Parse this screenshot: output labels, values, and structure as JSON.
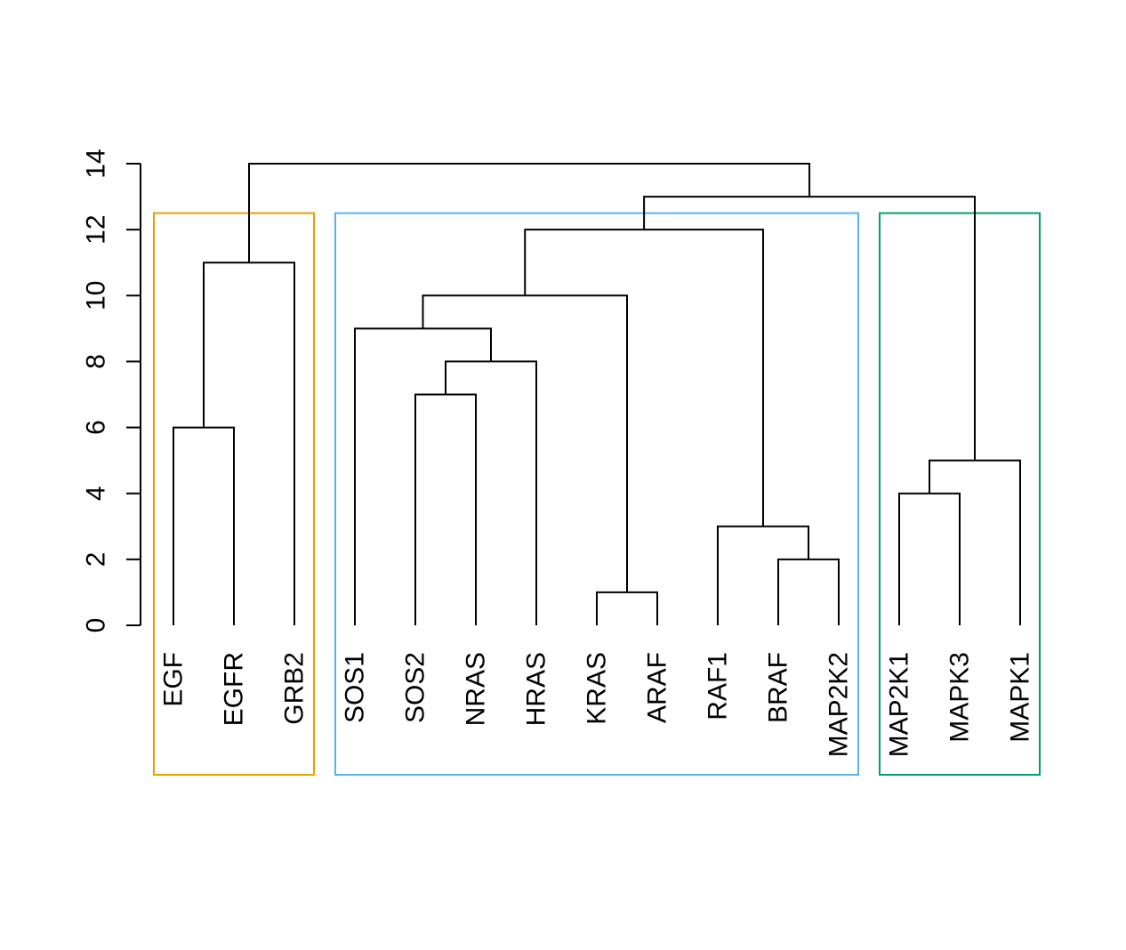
{
  "chart_data": {
    "type": "dendrogram",
    "title": "",
    "xlabel": "",
    "ylabel": "",
    "ylim": [
      0,
      14
    ],
    "yticks": [
      0,
      2,
      4,
      6,
      8,
      10,
      12,
      14
    ],
    "leaves": [
      "EGF",
      "EGFR",
      "GRB2",
      "SOS1",
      "SOS2",
      "NRAS",
      "HRAS",
      "KRAS",
      "ARAF",
      "RAF1",
      "BRAF",
      "MAP2K2",
      "MAP2K1",
      "MAPK3",
      "MAPK1"
    ],
    "merges": [
      {
        "children": [
          "EGF",
          "EGFR"
        ],
        "height": 6
      },
      {
        "children": [
          "EGF|EGFR",
          "GRB2"
        ],
        "height": 11
      },
      {
        "children": [
          "SOS2",
          "NRAS"
        ],
        "height": 7
      },
      {
        "children": [
          "SOS2|NRAS",
          "HRAS"
        ],
        "height": 8
      },
      {
        "children": [
          "SOS1",
          "SOS2|NRAS|HRAS"
        ],
        "height": 9
      },
      {
        "children": [
          "KRAS",
          "ARAF"
        ],
        "height": 1
      },
      {
        "children": [
          "SOS1|SOS2|NRAS|HRAS",
          "KRAS|ARAF"
        ],
        "height": 10
      },
      {
        "children": [
          "BRAF",
          "MAP2K2"
        ],
        "height": 2
      },
      {
        "children": [
          "RAF1",
          "BRAF|MAP2K2"
        ],
        "height": 3
      },
      {
        "children": [
          "SOS1..ARAF",
          "RAF1|BRAF|MAP2K2"
        ],
        "height": 12
      },
      {
        "children": [
          "MAP2K1",
          "MAPK3"
        ],
        "height": 4
      },
      {
        "children": [
          "MAP2K1|MAPK3",
          "MAPK1"
        ],
        "height": 5
      },
      {
        "children": [
          "SOS1..MAP2K2",
          "MAP2K1|MAPK3|MAPK1"
        ],
        "height": 13
      },
      {
        "children": [
          "EGF|EGFR|GRB2",
          "SOS1..MAPK1"
        ],
        "height": 14
      }
    ],
    "clusters": [
      {
        "members": [
          "EGF",
          "EGFR",
          "GRB2"
        ],
        "color": "#E69F00"
      },
      {
        "members": [
          "SOS1",
          "SOS2",
          "NRAS",
          "HRAS",
          "KRAS",
          "ARAF",
          "RAF1",
          "BRAF",
          "MAP2K2"
        ],
        "color": "#56B4E9"
      },
      {
        "members": [
          "MAP2K1",
          "MAPK3",
          "MAPK1"
        ],
        "color": "#009E73"
      }
    ],
    "cluster_cut_height": 12.5
  }
}
